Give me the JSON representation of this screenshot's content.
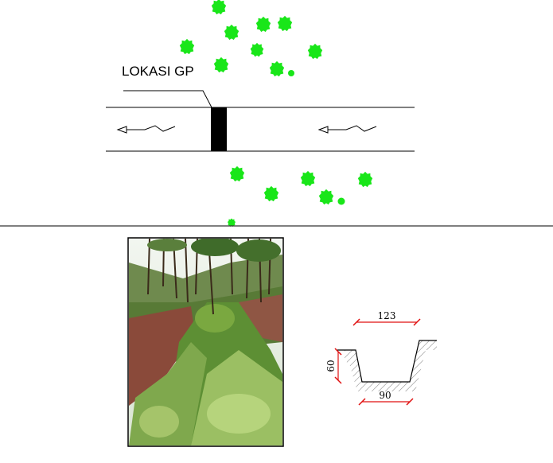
{
  "plan": {
    "location_label": "LOKASI GP"
  },
  "section": {
    "top_width": "123",
    "bottom_width": "90",
    "depth": "60"
  },
  "colors": {
    "tree": "#19e619",
    "dimension": "#e01010",
    "line": "#000000",
    "hatch": "#777777",
    "structure": "#000000"
  },
  "photo": {
    "subject": "vegetated earthen drainage channel in pine forest"
  }
}
